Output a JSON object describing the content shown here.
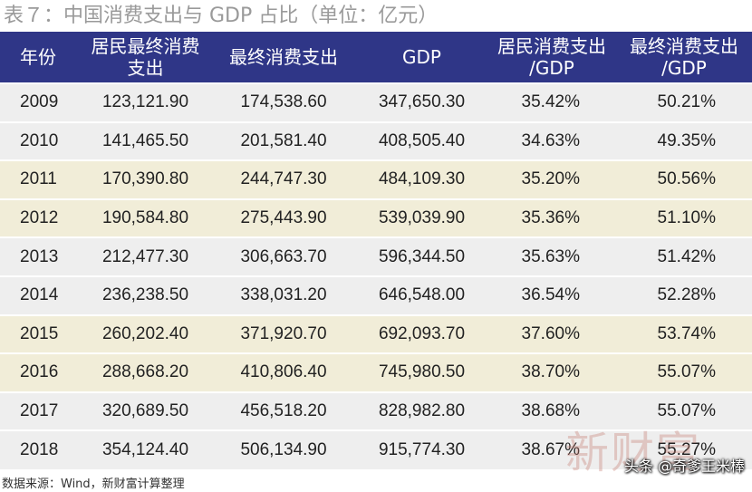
{
  "title": "表７：中国消费支出与 GDP 占比（单位：亿元）",
  "table": {
    "headers": [
      "年份",
      "居民最终消费支出",
      "最终消费支出",
      "GDP",
      "居民消费支出/GDP",
      "最终消费支出/GDP"
    ],
    "rows": [
      [
        "2009",
        "123,121.90",
        "174,538.60",
        "347,650.30",
        "35.42%",
        "50.21%"
      ],
      [
        "2010",
        "141,465.50",
        "201,581.40",
        "408,505.40",
        "34.63%",
        "49.35%"
      ],
      [
        "2011",
        "170,390.80",
        "244,747.30",
        "484,109.30",
        "35.20%",
        "50.56%"
      ],
      [
        "2012",
        "190,584.80",
        "275,443.90",
        "539,039.90",
        "35.36%",
        "51.10%"
      ],
      [
        "2013",
        "212,477.30",
        "306,663.70",
        "596,344.50",
        "35.63%",
        "51.42%"
      ],
      [
        "2014",
        "236,238.50",
        "338,031.20",
        "646,548.00",
        "36.54%",
        "52.28%"
      ],
      [
        "2015",
        "260,202.40",
        "371,920.70",
        "692,093.70",
        "37.60%",
        "53.74%"
      ],
      [
        "2016",
        "288,668.20",
        "410,806.40",
        "745,980.50",
        "38.70%",
        "55.07%"
      ],
      [
        "2017",
        "320,689.50",
        "456,518.20",
        "828,982.80",
        "38.68%",
        "55.07%"
      ],
      [
        "2018",
        "354,124.40",
        "506,134.90",
        "915,774.30",
        "38.67%",
        "55.27%"
      ]
    ]
  },
  "source": "数据来源：Wind，新财富计算整理",
  "watermark": "新财富",
  "credit": "头条 @奇爹王米棒",
  "colors": {
    "header_bg": "#2f3687",
    "row_shade_a": "#eeeeee",
    "row_shade_b": "#f1edd8"
  }
}
